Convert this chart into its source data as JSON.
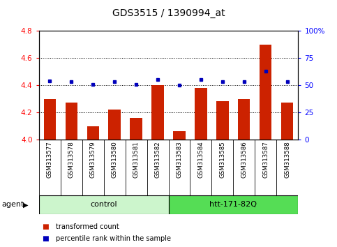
{
  "title": "GDS3515 / 1390994_at",
  "samples": [
    "GSM313577",
    "GSM313578",
    "GSM313579",
    "GSM313580",
    "GSM313581",
    "GSM313582",
    "GSM313583",
    "GSM313584",
    "GSM313585",
    "GSM313586",
    "GSM313587",
    "GSM313588"
  ],
  "red_values": [
    4.3,
    4.27,
    4.1,
    4.22,
    4.16,
    4.4,
    4.06,
    4.38,
    4.28,
    4.3,
    4.7,
    4.27
  ],
  "blue_values": [
    54,
    53,
    51,
    53,
    51,
    55,
    50,
    55,
    53,
    53,
    63,
    53
  ],
  "groups": [
    {
      "label": "control",
      "start": 0,
      "end": 6,
      "color": "#ccf5cc"
    },
    {
      "label": "htt-171-82Q",
      "start": 6,
      "end": 12,
      "color": "#55dd55"
    }
  ],
  "group_label": "agent",
  "ylim_left": [
    4.0,
    4.8
  ],
  "ylim_right": [
    0,
    100
  ],
  "yticks_left": [
    4.0,
    4.2,
    4.4,
    4.6,
    4.8
  ],
  "yticks_right": [
    0,
    25,
    50,
    75,
    100
  ],
  "ytick_labels_right": [
    "0",
    "25",
    "50",
    "75",
    "100%"
  ],
  "grid_values": [
    4.2,
    4.4,
    4.6
  ],
  "bar_color": "#cc2200",
  "dot_color": "#0000bb",
  "bar_width": 0.55,
  "legend_items": [
    {
      "label": "transformed count",
      "color": "#cc2200"
    },
    {
      "label": "percentile rank within the sample",
      "color": "#0000bb"
    }
  ],
  "tick_label_area_color": "#c8c8c8",
  "tick_cell_border_color": "#999999"
}
